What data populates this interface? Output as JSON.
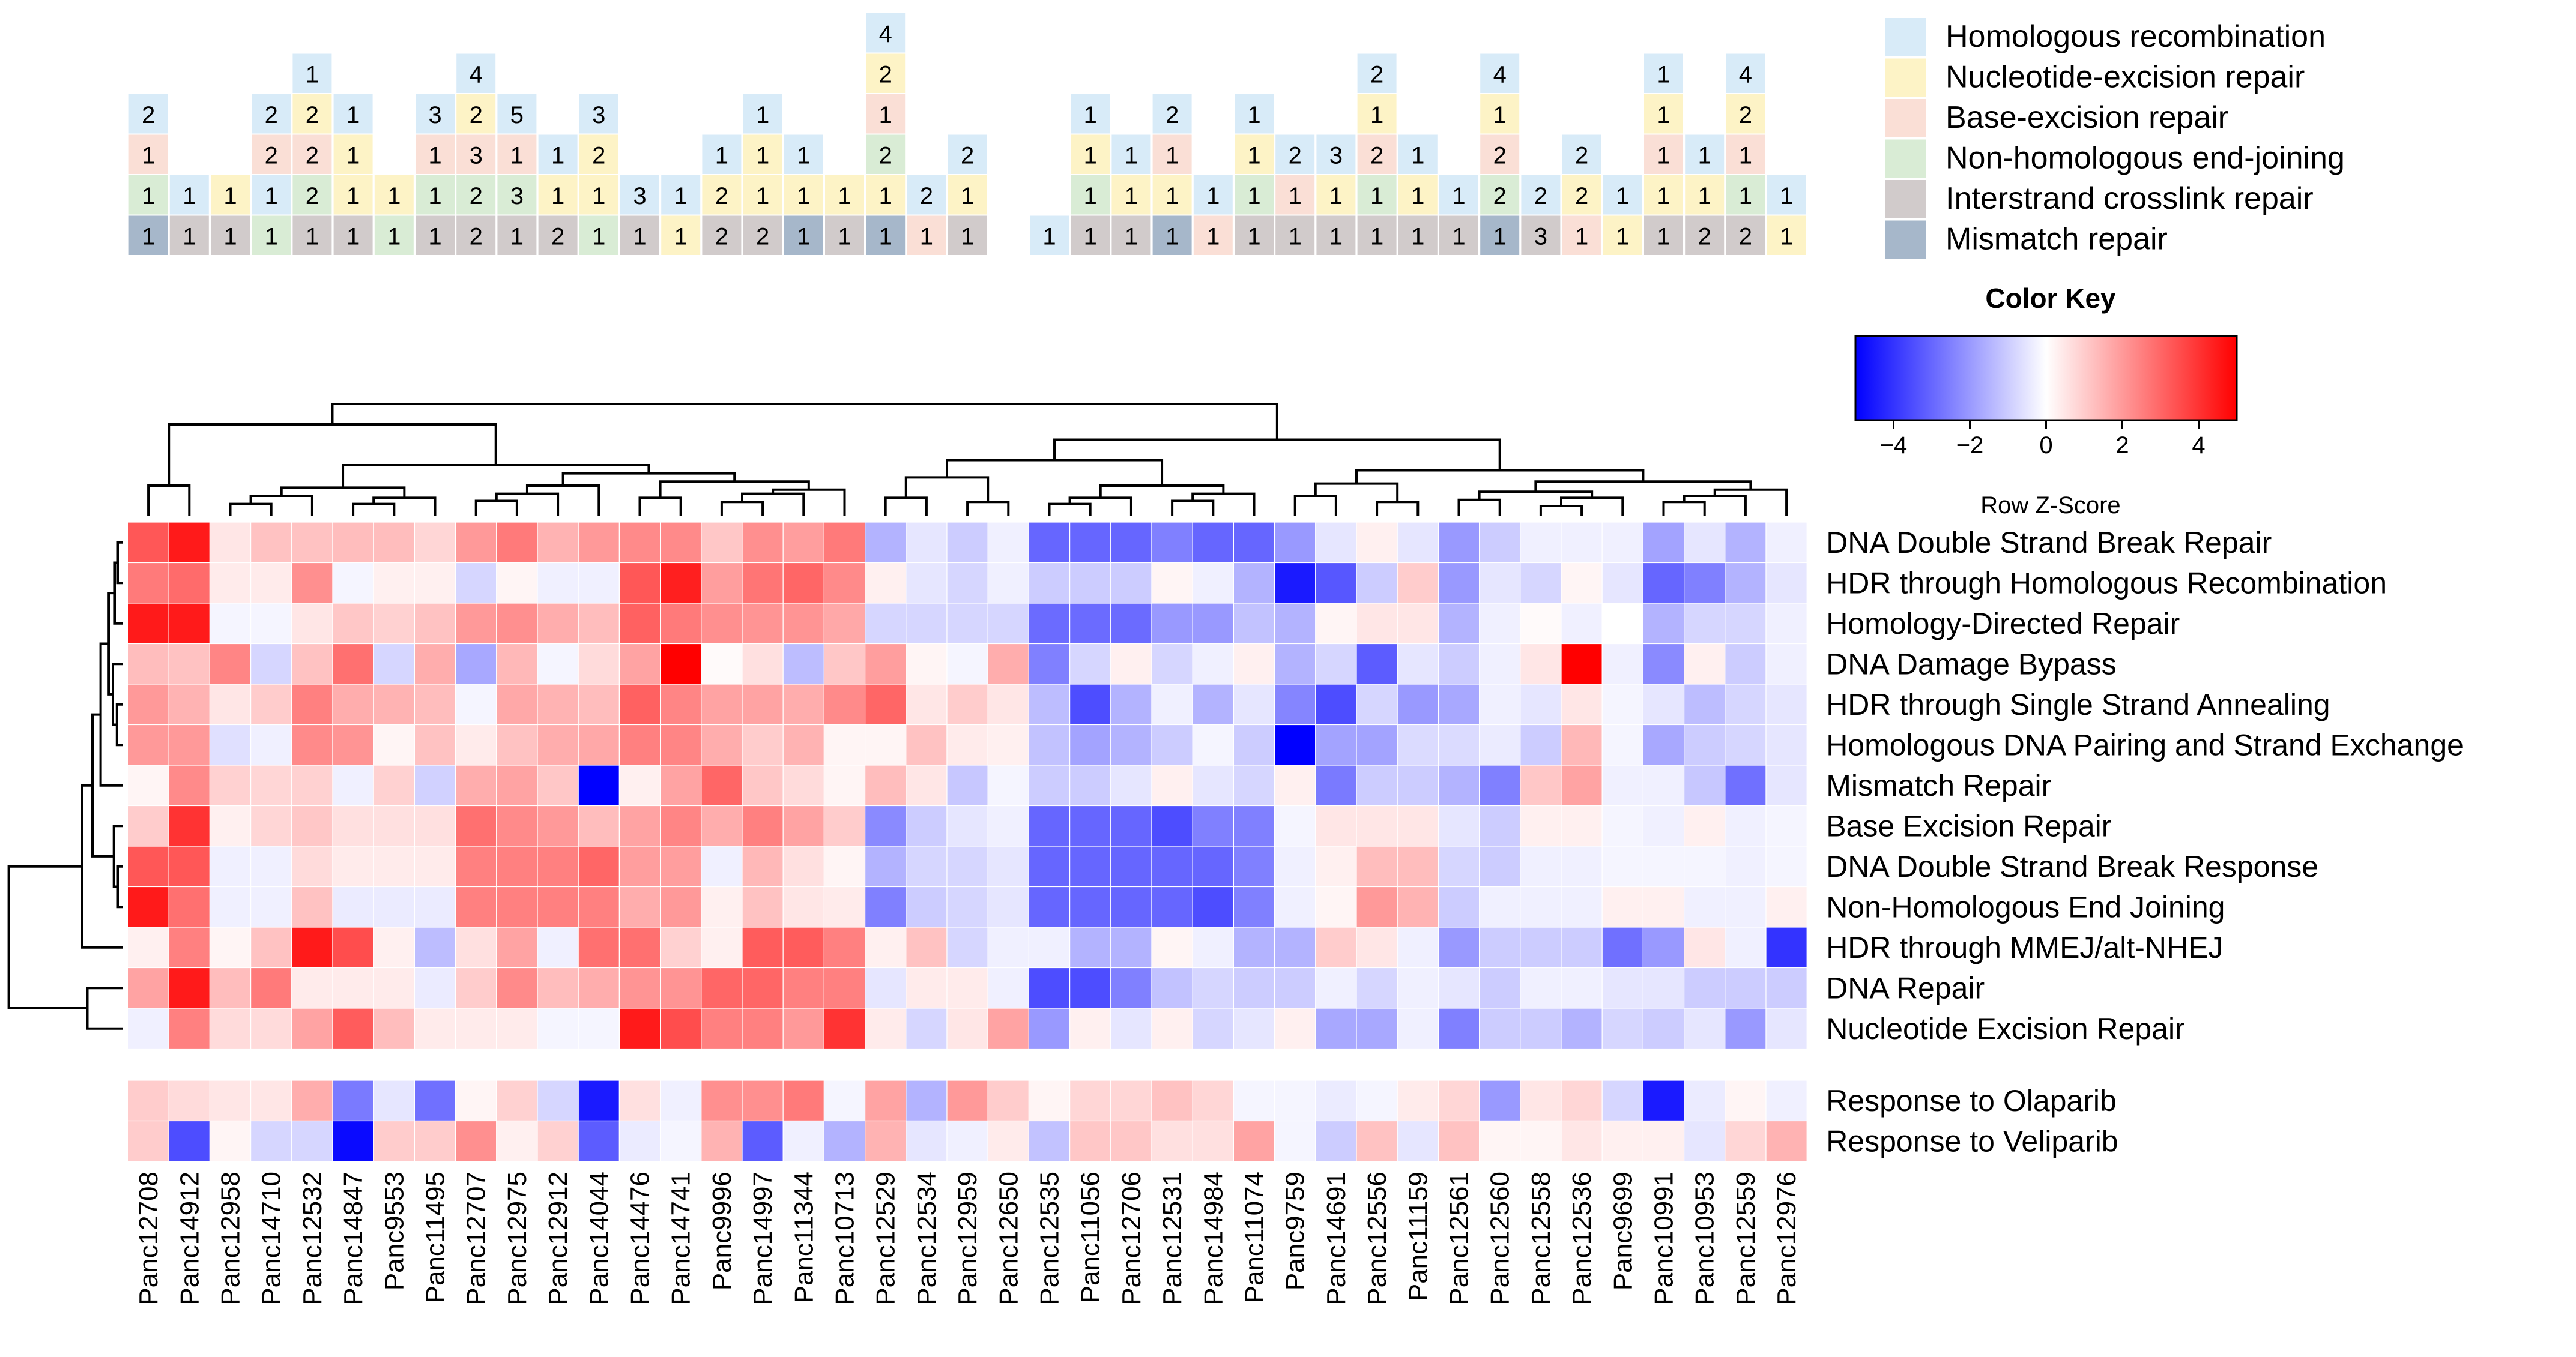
{
  "chart_data": {
    "type": "heatmap",
    "legend_title": "Color Key",
    "colorbar_label": "Row Z-Score",
    "colorbar_ticks": [
      "−4",
      "−2",
      "0",
      "2",
      "4"
    ],
    "zrange": [
      -5,
      5
    ],
    "colors": {
      "low": "#0000ff",
      "mid": "#ffffff",
      "high": "#ff0000",
      "cell_border": "#ffffff"
    },
    "mutation_categories": [
      {
        "key": "HR",
        "label": "Homologous recombination",
        "color": "#d8ebf8"
      },
      {
        "key": "NER",
        "label": "Nucleotide-excision repair",
        "color": "#fdf3c6"
      },
      {
        "key": "BER",
        "label": "Base-excision repair",
        "color": "#fadfd6"
      },
      {
        "key": "NHEJ",
        "label": "Non-homologous end-joining",
        "color": "#d9ecd5"
      },
      {
        "key": "ICL",
        "label": "Interstrand crosslink repair",
        "color": "#d1cbcb"
      },
      {
        "key": "MMR",
        "label": "Mismatch repair",
        "color": "#a6b7ca"
      }
    ],
    "samples": [
      "Panc12708",
      "Panc14912",
      "Panc12958",
      "Panc14710",
      "Panc12532",
      "Panc14847",
      "Panc9553",
      "Panc11495",
      "Panc12707",
      "Panc12975",
      "Panc12912",
      "Panc14044",
      "Panc14476",
      "Panc14741",
      "Panc9996",
      "Panc14997",
      "Panc11344",
      "Panc10713",
      "Panc12529",
      "Panc12534",
      "Panc12959",
      "Panc12650",
      "Panc12535",
      "Panc11056",
      "Panc12706",
      "Panc12531",
      "Panc14984",
      "Panc11074",
      "Panc9759",
      "Panc14691",
      "Panc12556",
      "Panc11159",
      "Panc12561",
      "Panc12560",
      "Panc12558",
      "Panc12536",
      "Panc9699",
      "Panc10991",
      "Panc10953",
      "Panc12559",
      "Panc12976"
    ],
    "mutation_counts": [
      [
        [
          1,
          "MMR"
        ],
        [
          1,
          "NHEJ"
        ],
        [
          1,
          "BER"
        ],
        [
          2,
          "HR"
        ]
      ],
      [
        [
          1,
          "ICL"
        ],
        [
          1,
          "HR"
        ]
      ],
      [
        [
          1,
          "ICL"
        ],
        [
          1,
          "NER"
        ]
      ],
      [
        [
          1,
          "NHEJ"
        ],
        [
          1,
          "HR"
        ],
        [
          2,
          "BER"
        ],
        [
          2,
          "HR"
        ]
      ],
      [
        [
          1,
          "ICL"
        ],
        [
          2,
          "NHEJ"
        ],
        [
          2,
          "BER"
        ],
        [
          2,
          "NER"
        ],
        [
          1,
          "HR"
        ]
      ],
      [
        [
          1,
          "ICL"
        ],
        [
          1,
          "NER"
        ],
        [
          1,
          "NER"
        ],
        [
          1,
          "HR"
        ]
      ],
      [
        [
          1,
          "NHEJ"
        ],
        [
          1,
          "NER"
        ]
      ],
      [
        [
          1,
          "ICL"
        ],
        [
          1,
          "NHEJ"
        ],
        [
          1,
          "BER"
        ],
        [
          3,
          "HR"
        ]
      ],
      [
        [
          2,
          "ICL"
        ],
        [
          2,
          "NHEJ"
        ],
        [
          3,
          "BER"
        ],
        [
          2,
          "NER"
        ],
        [
          4,
          "HR"
        ]
      ],
      [
        [
          1,
          "ICL"
        ],
        [
          3,
          "NHEJ"
        ],
        [
          1,
          "BER"
        ],
        [
          5,
          "HR"
        ]
      ],
      [
        [
          2,
          "ICL"
        ],
        [
          1,
          "NER"
        ],
        [
          1,
          "HR"
        ]
      ],
      [
        [
          1,
          "NHEJ"
        ],
        [
          1,
          "NER"
        ],
        [
          2,
          "NER"
        ],
        [
          3,
          "HR"
        ]
      ],
      [
        [
          1,
          "ICL"
        ],
        [
          3,
          "HR"
        ]
      ],
      [
        [
          1,
          "NER"
        ],
        [
          1,
          "HR"
        ]
      ],
      [
        [
          2,
          "ICL"
        ],
        [
          2,
          "NER"
        ],
        [
          1,
          "HR"
        ]
      ],
      [
        [
          2,
          "ICL"
        ],
        [
          1,
          "NER"
        ],
        [
          1,
          "NER"
        ],
        [
          1,
          "HR"
        ]
      ],
      [
        [
          1,
          "MMR"
        ],
        [
          1,
          "NER"
        ],
        [
          1,
          "HR"
        ]
      ],
      [
        [
          1,
          "ICL"
        ],
        [
          1,
          "NER"
        ]
      ],
      [
        [
          1,
          "MMR"
        ],
        [
          1,
          "NER"
        ],
        [
          2,
          "NHEJ"
        ],
        [
          1,
          "BER"
        ],
        [
          2,
          "NER"
        ],
        [
          4,
          "HR"
        ]
      ],
      [
        [
          1,
          "BER"
        ],
        [
          2,
          "HR"
        ]
      ],
      [
        [
          1,
          "ICL"
        ],
        [
          1,
          "NER"
        ],
        [
          2,
          "HR"
        ]
      ],
      [],
      [
        [
          1,
          "HR"
        ]
      ],
      [
        [
          1,
          "ICL"
        ],
        [
          1,
          "NHEJ"
        ],
        [
          1,
          "NER"
        ],
        [
          1,
          "HR"
        ]
      ],
      [
        [
          1,
          "ICL"
        ],
        [
          1,
          "NER"
        ],
        [
          1,
          "HR"
        ]
      ],
      [
        [
          1,
          "MMR"
        ],
        [
          1,
          "NER"
        ],
        [
          1,
          "BER"
        ],
        [
          2,
          "HR"
        ]
      ],
      [
        [
          1,
          "BER"
        ],
        [
          1,
          "HR"
        ]
      ],
      [
        [
          1,
          "ICL"
        ],
        [
          1,
          "NHEJ"
        ],
        [
          1,
          "NER"
        ],
        [
          1,
          "HR"
        ]
      ],
      [
        [
          1,
          "ICL"
        ],
        [
          1,
          "BER"
        ],
        [
          2,
          "HR"
        ]
      ],
      [
        [
          1,
          "ICL"
        ],
        [
          1,
          "NER"
        ],
        [
          3,
          "HR"
        ]
      ],
      [
        [
          1,
          "ICL"
        ],
        [
          1,
          "NHEJ"
        ],
        [
          2,
          "BER"
        ],
        [
          1,
          "NER"
        ],
        [
          2,
          "HR"
        ]
      ],
      [
        [
          1,
          "ICL"
        ],
        [
          1,
          "NER"
        ],
        [
          1,
          "HR"
        ]
      ],
      [
        [
          1,
          "ICL"
        ],
        [
          1,
          "HR"
        ]
      ],
      [
        [
          1,
          "MMR"
        ],
        [
          2,
          "NHEJ"
        ],
        [
          2,
          "BER"
        ],
        [
          1,
          "NER"
        ],
        [
          4,
          "HR"
        ]
      ],
      [
        [
          3,
          "ICL"
        ],
        [
          2,
          "HR"
        ]
      ],
      [
        [
          1,
          "BER"
        ],
        [
          2,
          "NER"
        ],
        [
          2,
          "HR"
        ]
      ],
      [
        [
          1,
          "NER"
        ],
        [
          1,
          "HR"
        ]
      ],
      [
        [
          1,
          "ICL"
        ],
        [
          1,
          "NER"
        ],
        [
          1,
          "BER"
        ],
        [
          1,
          "NER"
        ],
        [
          1,
          "HR"
        ]
      ],
      [
        [
          2,
          "ICL"
        ],
        [
          1,
          "NER"
        ],
        [
          1,
          "HR"
        ]
      ],
      [
        [
          2,
          "ICL"
        ],
        [
          1,
          "NHEJ"
        ],
        [
          1,
          "BER"
        ],
        [
          2,
          "NER"
        ],
        [
          4,
          "HR"
        ]
      ],
      [
        [
          1,
          "NER"
        ],
        [
          1,
          "HR"
        ]
      ]
    ],
    "pathways": [
      "DNA Double Strand Break Repair",
      "HDR through Homologous Recombination",
      "Homology-Directed Repair",
      "DNA Damage Bypass",
      "HDR through Single Strand Annealing",
      "Homologous DNA Pairing and Strand Exchange",
      "Mismatch Repair",
      "Base Excision Repair",
      "DNA Double Strand Break Response",
      "Non-Homologous End Joining",
      "HDR through MMEJ/alt-NHEJ",
      "DNA Repair",
      "Nucleotide Excision Repair"
    ],
    "pathway_values": [
      [
        3.3,
        4.5,
        0.5,
        1.2,
        1.2,
        1.3,
        1.3,
        0.8,
        2.0,
        2.6,
        1.5,
        2.0,
        2.3,
        2.3,
        1.1,
        2.2,
        1.9,
        2.6,
        -1.5,
        -0.5,
        -1.0,
        -0.3,
        -3.0,
        -3.0,
        -3.0,
        -2.5,
        -3.0,
        -3.0,
        -2.0,
        -0.5,
        0.3,
        -0.5,
        -2.0,
        -1.0,
        -0.3,
        -0.3,
        -0.3,
        -1.8,
        -0.5,
        -1.5,
        -0.3
      ],
      [
        2.6,
        2.9,
        0.4,
        0.4,
        2.2,
        -0.2,
        0.3,
        0.3,
        -0.8,
        0.2,
        -0.3,
        -0.3,
        3.3,
        4.4,
        1.9,
        2.7,
        3.0,
        2.3,
        0.3,
        -0.5,
        -0.8,
        -0.3,
        -1.0,
        -1.0,
        -1.0,
        0.2,
        -0.3,
        -1.5,
        -4.5,
        -3.3,
        -1.0,
        1.0,
        -2.0,
        -0.5,
        -0.8,
        0.2,
        -0.5,
        -3.0,
        -2.5,
        -1.5,
        -0.5
      ],
      [
        4.5,
        4.5,
        -0.2,
        -0.2,
        0.5,
        1.1,
        0.9,
        1.2,
        2.0,
        2.2,
        1.6,
        1.3,
        3.1,
        2.6,
        2.2,
        2.1,
        2.1,
        1.7,
        -0.8,
        -0.8,
        -0.8,
        -0.8,
        -2.9,
        -2.9,
        -2.9,
        -2.0,
        -2.0,
        -1.2,
        -1.5,
        0.2,
        0.5,
        0.5,
        -1.5,
        -0.3,
        0.1,
        -0.3,
        0.0,
        -1.5,
        -0.8,
        -0.8,
        -0.3
      ],
      [
        1.3,
        1.2,
        2.4,
        -0.8,
        1.2,
        2.8,
        -0.8,
        1.6,
        -1.7,
        1.4,
        -0.2,
        0.7,
        1.8,
        5.0,
        0.1,
        0.6,
        -1.3,
        1.1,
        1.9,
        0.2,
        -0.2,
        1.6,
        -2.5,
        -0.8,
        0.3,
        -0.8,
        -0.3,
        0.3,
        -1.5,
        -0.8,
        -3.2,
        -0.5,
        -1.0,
        -0.3,
        0.5,
        5.0,
        -0.3,
        -2.3,
        0.3,
        -1.0,
        -0.3
      ],
      [
        2.0,
        1.5,
        0.5,
        1.0,
        2.5,
        1.6,
        1.5,
        1.3,
        -0.2,
        1.7,
        1.5,
        1.3,
        3.1,
        2.4,
        1.8,
        1.8,
        1.6,
        2.3,
        3.0,
        0.5,
        1.0,
        0.5,
        -1.3,
        -3.5,
        -1.5,
        -0.3,
        -1.5,
        -0.5,
        -2.4,
        -3.5,
        -0.8,
        -2.0,
        -1.7,
        -0.3,
        -0.5,
        0.5,
        -0.2,
        -0.5,
        -1.3,
        -0.8,
        -0.5
      ],
      [
        2.0,
        2.0,
        -0.6,
        -0.3,
        2.3,
        2.1,
        0.2,
        1.2,
        0.4,
        1.2,
        1.6,
        1.7,
        2.5,
        2.4,
        1.6,
        1.0,
        1.5,
        0.2,
        0.2,
        1.2,
        0.4,
        0.3,
        -1.2,
        -1.8,
        -1.5,
        -1.0,
        -0.2,
        -1.0,
        -5.0,
        -1.8,
        -1.8,
        -0.7,
        -0.7,
        -0.4,
        -1.0,
        1.4,
        -0.2,
        -1.7,
        -1.0,
        -0.8,
        -0.5
      ],
      [
        0.2,
        2.3,
        0.9,
        0.8,
        0.9,
        -0.3,
        0.9,
        -0.9,
        1.6,
        1.8,
        1.1,
        -5.0,
        0.3,
        1.8,
        3.0,
        1.1,
        0.7,
        0.2,
        1.3,
        0.5,
        -1.1,
        -0.2,
        -1.0,
        -1.0,
        -0.5,
        0.3,
        -0.5,
        -0.8,
        0.3,
        -2.6,
        -1.0,
        -1.0,
        -1.5,
        -2.5,
        1.1,
        1.8,
        -0.3,
        -0.3,
        -1.1,
        -2.8,
        -0.5
      ],
      [
        1.0,
        4.0,
        0.3,
        0.8,
        1.1,
        0.6,
        0.6,
        0.6,
        2.8,
        2.3,
        2.0,
        1.3,
        1.8,
        2.4,
        1.6,
        2.5,
        1.8,
        1.0,
        -2.3,
        -1.0,
        -0.5,
        -0.3,
        -3.0,
        -3.0,
        -3.0,
        -3.5,
        -2.5,
        -2.5,
        -0.2,
        0.5,
        0.5,
        0.5,
        -0.5,
        -1.0,
        0.3,
        0.3,
        -0.2,
        -0.3,
        0.3,
        -0.3,
        -0.2
      ],
      [
        3.3,
        3.3,
        -0.3,
        -0.3,
        0.7,
        0.4,
        0.4,
        0.4,
        2.5,
        2.5,
        2.5,
        3.0,
        1.9,
        1.9,
        -0.3,
        1.4,
        0.6,
        0.2,
        -1.5,
        -0.8,
        -0.8,
        -0.5,
        -3.0,
        -3.0,
        -3.0,
        -3.0,
        -3.0,
        -2.5,
        -0.3,
        0.3,
        1.3,
        1.3,
        -0.8,
        -1.0,
        -0.3,
        -0.3,
        -0.2,
        -0.2,
        -0.2,
        -0.3,
        -0.2
      ],
      [
        4.5,
        2.8,
        -0.3,
        -0.3,
        1.2,
        -0.4,
        -0.4,
        -0.4,
        2.5,
        2.5,
        2.5,
        2.5,
        1.6,
        2.0,
        0.3,
        1.2,
        0.5,
        0.4,
        -2.5,
        -1.0,
        -0.8,
        -0.5,
        -3.0,
        -3.0,
        -3.0,
        -3.0,
        -3.5,
        -2.5,
        -0.3,
        0.2,
        2.0,
        1.5,
        -1.0,
        -0.3,
        -0.3,
        -0.3,
        0.3,
        0.3,
        -0.3,
        -0.3,
        0.3
      ],
      [
        0.3,
        2.5,
        0.2,
        1.2,
        4.5,
        3.5,
        0.3,
        -1.3,
        0.6,
        1.8,
        -0.3,
        2.8,
        2.8,
        0.9,
        0.3,
        3.2,
        3.2,
        2.5,
        0.3,
        1.2,
        -0.8,
        -0.3,
        -0.3,
        -1.5,
        -1.5,
        0.2,
        -0.3,
        -1.5,
        -1.5,
        1.0,
        0.5,
        -0.3,
        -2.0,
        -1.0,
        -1.0,
        -1.0,
        -2.8,
        -2.0,
        0.5,
        -0.3,
        -4.0
      ],
      [
        1.8,
        4.5,
        1.3,
        2.6,
        0.4,
        0.4,
        0.4,
        -0.4,
        1.0,
        2.3,
        1.3,
        1.6,
        2.1,
        2.1,
        3.0,
        3.0,
        2.5,
        2.5,
        -0.5,
        0.4,
        0.4,
        -0.3,
        -3.5,
        -3.5,
        -2.5,
        -1.2,
        -0.8,
        -1.0,
        -1.0,
        -0.3,
        -0.8,
        -0.3,
        -0.5,
        -1.0,
        -0.3,
        -0.3,
        -0.5,
        -0.5,
        -1.0,
        -1.0,
        -1.0
      ],
      [
        -0.3,
        2.5,
        0.7,
        0.7,
        1.8,
        3.2,
        1.3,
        0.4,
        0.4,
        0.4,
        -0.2,
        -0.2,
        4.5,
        3.5,
        2.5,
        2.5,
        2.0,
        4.0,
        0.4,
        -0.8,
        0.5,
        1.8,
        -2.0,
        0.3,
        -0.5,
        0.3,
        -0.8,
        -0.5,
        0.3,
        -1.7,
        -1.7,
        -0.3,
        -2.5,
        -1.0,
        -1.0,
        -1.5,
        -0.8,
        -1.0,
        -0.5,
        -2.0,
        -0.5
      ]
    ],
    "drug_responses": [
      "Response to Olaparib",
      "Response to Veliparib"
    ],
    "drug_values": [
      [
        1.0,
        0.7,
        0.5,
        0.5,
        1.6,
        -2.6,
        -0.5,
        -2.8,
        0.2,
        0.9,
        -0.8,
        -4.5,
        0.6,
        -0.3,
        2.2,
        2.2,
        2.6,
        -0.2,
        1.8,
        -1.5,
        2.0,
        1.0,
        0.2,
        0.8,
        0.8,
        1.2,
        0.8,
        -0.2,
        -0.2,
        -0.4,
        -0.2,
        0.4,
        0.8,
        -2.0,
        0.5,
        0.8,
        -0.8,
        -4.5,
        -0.4,
        0.2,
        -0.3
      ],
      [
        1.0,
        -3.5,
        0.2,
        -0.8,
        -0.8,
        -4.8,
        1.0,
        1.0,
        2.2,
        0.3,
        0.9,
        -3.2,
        -0.4,
        -0.2,
        1.5,
        -3.2,
        -0.3,
        -1.5,
        1.5,
        -0.5,
        -0.3,
        0.4,
        -1.2,
        1.1,
        1.1,
        0.6,
        0.6,
        1.8,
        -0.2,
        -1.0,
        1.2,
        -0.5,
        1.2,
        0.2,
        0.2,
        0.5,
        0.3,
        0.3,
        -0.5,
        0.8,
        1.5
      ]
    ]
  }
}
